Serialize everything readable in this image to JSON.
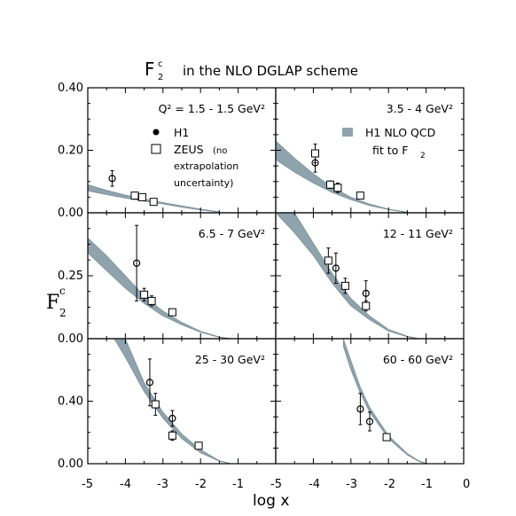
{
  "figure": {
    "title_main": "F",
    "title_sup": "c",
    "title_sub": "2",
    "title_rest": "in the NLO DGLAP scheme",
    "y_axis_main": "F",
    "y_axis_sup": "c",
    "y_axis_sub": "2",
    "x_axis_title": "log x",
    "x_ticks": [
      "-5",
      "-4",
      "-3",
      "-2",
      "-1",
      "-5",
      "-4",
      "-3",
      "-2",
      "-1",
      "0"
    ],
    "legend": {
      "h1": "H1",
      "zeus": "ZEUS",
      "zeus_note": "(no",
      "zeus_note2": "extrapolation",
      "zeus_note3": "uncertainty)",
      "fit": "H1 NLO QCD",
      "fit2": "fit to F",
      "fit2_sub": "2"
    },
    "colors": {
      "band": "#8fa3ad",
      "axes": "#000000",
      "background": "#ffffff"
    }
  },
  "chart_data": [
    {
      "type": "scatter",
      "panel": "top-left",
      "q2_label": "Q² = 1.5 - 1.5 GeV²",
      "xlim": [
        -5,
        0
      ],
      "ylim": [
        0,
        0.4
      ],
      "yticks": [
        "0.00",
        "0.20",
        "0.40"
      ],
      "series": [
        {
          "name": "H1",
          "x": [
            -4.35
          ],
          "y": [
            0.11
          ],
          "err": [
            0.025
          ]
        },
        {
          "name": "ZEUS",
          "x": [
            -3.75,
            -3.55,
            -3.25
          ],
          "y": [
            0.055,
            0.05,
            0.035
          ],
          "err": [
            0.01,
            0.01,
            0.008
          ]
        }
      ],
      "band": {
        "x": [
          -5,
          -4.5,
          -4,
          -3.5,
          -3,
          -2.5,
          -2,
          -1.5
        ],
        "lo": [
          0.07,
          0.058,
          0.047,
          0.037,
          0.028,
          0.018,
          0.009,
          0.002
        ],
        "hi": [
          0.09,
          0.072,
          0.057,
          0.044,
          0.033,
          0.022,
          0.012,
          0.003
        ]
      }
    },
    {
      "type": "scatter",
      "panel": "top-right",
      "q2_label": "3.5 - 4 GeV²",
      "xlim": [
        -5,
        0
      ],
      "ylim": [
        0,
        0.4
      ],
      "series": [
        {
          "name": "H1",
          "x": [
            -3.95
          ],
          "y": [
            0.16
          ],
          "err": [
            0.03
          ]
        },
        {
          "name": "ZEUS",
          "x": [
            -3.95,
            -3.55,
            -3.35,
            -2.75
          ],
          "y": [
            0.19,
            0.09,
            0.08,
            0.055
          ],
          "err": [
            0.03,
            0.012,
            0.015,
            0.01
          ]
        }
      ],
      "band": {
        "x": [
          -5,
          -4.5,
          -4,
          -3.5,
          -3,
          -2.5,
          -2,
          -1.5
        ],
        "lo": [
          0.17,
          0.13,
          0.095,
          0.065,
          0.042,
          0.023,
          0.01,
          0.001
        ],
        "hi": [
          0.23,
          0.175,
          0.125,
          0.082,
          0.05,
          0.028,
          0.012,
          0.002
        ]
      }
    },
    {
      "type": "scatter",
      "panel": "middle-left",
      "q2_label": "6.5 - 7 GeV²",
      "xlim": [
        -5,
        0
      ],
      "ylim": [
        0,
        0.5
      ],
      "yticks": [
        "0.00",
        "0.25"
      ],
      "series": [
        {
          "name": "H1",
          "x": [
            -3.7
          ],
          "y": [
            0.3
          ],
          "err": [
            0.15
          ]
        },
        {
          "name": "ZEUS",
          "x": [
            -3.5,
            -3.3,
            -2.75
          ],
          "y": [
            0.175,
            0.15,
            0.105
          ],
          "err": [
            0.025,
            0.02,
            0.01
          ]
        }
      ],
      "band": {
        "x": [
          -5,
          -4.5,
          -4,
          -3.5,
          -3,
          -2.5,
          -2,
          -1.5,
          -1.2
        ],
        "lo": [
          0.34,
          0.27,
          0.2,
          0.14,
          0.09,
          0.055,
          0.025,
          0.005,
          0.0
        ],
        "hi": [
          0.4,
          0.33,
          0.25,
          0.17,
          0.11,
          0.065,
          0.03,
          0.007,
          0.001
        ]
      }
    },
    {
      "type": "scatter",
      "panel": "middle-right",
      "q2_label": "12 - 11 GeV²",
      "xlim": [
        -5,
        0
      ],
      "ylim": [
        0,
        0.5
      ],
      "series": [
        {
          "name": "H1",
          "x": [
            -3.4,
            -2.6
          ],
          "y": [
            0.28,
            0.18
          ],
          "err": [
            0.06,
            0.05
          ]
        },
        {
          "name": "ZEUS",
          "x": [
            -3.6,
            -3.15,
            -2.6
          ],
          "y": [
            0.31,
            0.21,
            0.13
          ],
          "err": [
            0.05,
            0.03,
            0.02
          ]
        }
      ],
      "band": {
        "x": [
          -5,
          -4.5,
          -4,
          -3.5,
          -3,
          -2.5,
          -2,
          -1.5,
          -1.2
        ],
        "lo": [
          0.5,
          0.42,
          0.33,
          0.22,
          0.13,
          0.075,
          0.03,
          0.007,
          0.0
        ],
        "hi": [
          0.5,
          0.5,
          0.38,
          0.26,
          0.16,
          0.09,
          0.037,
          0.01,
          0.001
        ]
      }
    },
    {
      "type": "scatter",
      "panel": "bottom-left",
      "q2_label": "25 - 30 GeV²",
      "xlim": [
        -5,
        0
      ],
      "ylim": [
        0,
        0.8
      ],
      "yticks": [
        "0.00",
        "0.40"
      ],
      "series": [
        {
          "name": "H1",
          "x": [
            -3.35,
            -2.75
          ],
          "y": [
            0.52,
            0.29
          ],
          "err": [
            0.15,
            0.05
          ]
        },
        {
          "name": "ZEUS",
          "x": [
            -3.2,
            -2.75,
            -2.05
          ],
          "y": [
            0.38,
            0.18,
            0.115
          ],
          "err": [
            0.07,
            0.03,
            0.015
          ]
        }
      ],
      "band": {
        "x": [
          -4.3,
          -4,
          -3.5,
          -3,
          -2.5,
          -2,
          -1.5,
          -1.2
        ],
        "lo": [
          0.8,
          0.68,
          0.46,
          0.29,
          0.16,
          0.07,
          0.015,
          0.0
        ],
        "hi": [
          0.8,
          0.8,
          0.52,
          0.33,
          0.19,
          0.09,
          0.02,
          0.001
        ]
      }
    },
    {
      "type": "scatter",
      "panel": "bottom-right",
      "q2_label": "60 - 60 GeV²",
      "xlim": [
        -5,
        0
      ],
      "ylim": [
        0,
        0.8
      ],
      "series": [
        {
          "name": "H1",
          "x": [
            -2.75,
            -2.5
          ],
          "y": [
            0.35,
            0.27
          ],
          "err": [
            0.1,
            0.06
          ]
        },
        {
          "name": "ZEUS",
          "x": [
            -2.05
          ],
          "y": [
            0.17
          ],
          "err": [
            0.015
          ]
        }
      ],
      "band": {
        "x": [
          -3.2,
          -3,
          -2.75,
          -2.5,
          -2,
          -1.5,
          -1.2,
          -1
        ],
        "lo": [
          0.75,
          0.6,
          0.45,
          0.33,
          0.16,
          0.055,
          0.015,
          0.0
        ],
        "hi": [
          0.8,
          0.66,
          0.49,
          0.36,
          0.18,
          0.065,
          0.02,
          0.002
        ]
      }
    }
  ]
}
